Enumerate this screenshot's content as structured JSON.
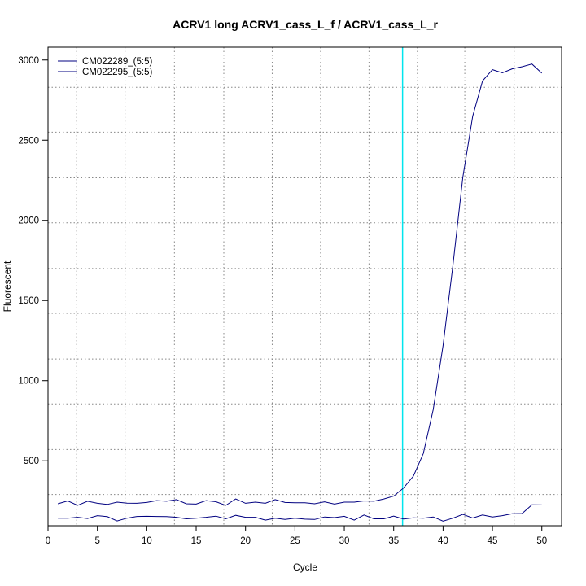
{
  "chart_data": {
    "type": "line",
    "title": "ACRV1 long ACRV1_cass_L_f / ACRV1_cass_L_r",
    "xlabel": "Cycle",
    "ylabel": "Fluorescent",
    "xlim": [
      0,
      52
    ],
    "ylim": [
      95,
      3080
    ],
    "xticks": [
      0,
      5,
      10,
      15,
      20,
      25,
      30,
      35,
      40,
      45,
      50
    ],
    "yticks": [
      500,
      1000,
      1500,
      2000,
      2500,
      3000
    ],
    "grid": true,
    "grid_x": [
      2.9,
      7.8,
      12.8,
      17.8,
      22.7,
      27.6,
      32.5,
      37.4,
      42.2,
      47.2
    ],
    "grid_y": [
      290,
      570,
      855,
      1135,
      1420,
      1700,
      1985,
      2265,
      2550,
      2830
    ],
    "threshold_cycle": 35.9,
    "threshold_color": "#00e5ee",
    "legend_position": "top-left",
    "series": [
      {
        "name": "CM022289_(5:5)",
        "color": "#000080",
        "x": [
          1,
          2,
          3,
          4,
          5,
          6,
          7,
          8,
          9,
          10,
          11,
          12,
          13,
          14,
          15,
          16,
          17,
          18,
          19,
          20,
          21,
          22,
          23,
          24,
          25,
          26,
          27,
          28,
          29,
          30,
          31,
          32,
          33,
          34,
          35,
          36,
          37,
          38,
          39,
          40,
          41,
          42,
          43,
          44,
          45,
          46,
          47,
          48,
          49,
          50
        ],
        "y": [
          232,
          250,
          222,
          248,
          235,
          228,
          242,
          236,
          235,
          240,
          252,
          248,
          258,
          232,
          230,
          252,
          245,
          222,
          262,
          235,
          242,
          235,
          258,
          240,
          238,
          238,
          232,
          244,
          230,
          242,
          242,
          250,
          248,
          262,
          280,
          330,
          405,
          545,
          820,
          1220,
          1720,
          2270,
          2650,
          2870,
          2940,
          2920,
          2945,
          2958,
          2975,
          2918
        ]
      },
      {
        "name": "CM022295_(5:5)",
        "color": "#000080",
        "x": [
          1,
          2,
          3,
          4,
          5,
          6,
          7,
          8,
          9,
          10,
          11,
          12,
          13,
          14,
          15,
          16,
          17,
          18,
          19,
          20,
          21,
          22,
          23,
          24,
          25,
          26,
          27,
          28,
          29,
          30,
          31,
          32,
          33,
          34,
          35,
          36,
          37,
          38,
          39,
          40,
          41,
          42,
          43,
          44,
          45,
          46,
          47,
          48,
          49,
          50
        ],
        "y": [
          142,
          142,
          148,
          140,
          158,
          152,
          125,
          142,
          153,
          154,
          153,
          152,
          148,
          138,
          142,
          148,
          155,
          138,
          160,
          148,
          148,
          130,
          142,
          134,
          142,
          136,
          134,
          150,
          146,
          154,
          130,
          162,
          138,
          138,
          155,
          137,
          145,
          142,
          150,
          124,
          142,
          166,
          143,
          162,
          150,
          158,
          170,
          171,
          226,
          225
        ]
      }
    ]
  }
}
